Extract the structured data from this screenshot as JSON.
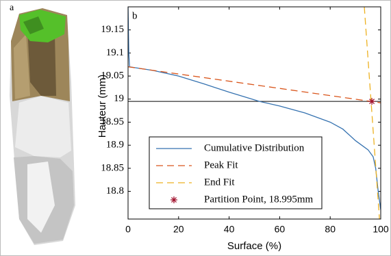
{
  "chart_data": {
    "type": "line",
    "panel_labels": [
      "a",
      "b"
    ],
    "xlabel": "Surface (%)",
    "ylabel": "Hauteur (mm)",
    "xlim": [
      0,
      100
    ],
    "xticks": [
      0,
      20,
      40,
      60,
      80,
      100
    ],
    "ylim": [
      18.74,
      19.2
    ],
    "yticks": [
      18.8,
      18.85,
      18.9,
      18.95,
      19,
      19.05,
      19.1,
      19.15
    ],
    "reference_line": 18.995,
    "legend": "lower right",
    "series": [
      {
        "name": "Cumulative Distribution",
        "color": "#3572b0",
        "style": "solid",
        "x": [
          0,
          0.3,
          0.6,
          10,
          20,
          30,
          40,
          52,
          60,
          70,
          80,
          85,
          90,
          95,
          97,
          98,
          99,
          100
        ],
        "values": [
          19.2,
          19.1,
          19.07,
          19.062,
          19.05,
          19.033,
          19.015,
          18.995,
          18.985,
          18.97,
          18.95,
          18.935,
          18.91,
          18.89,
          18.875,
          18.85,
          18.8,
          18.76
        ]
      },
      {
        "name": "Peak Fit",
        "color": "#d9541a",
        "style": "dashed",
        "x": [
          0,
          100
        ],
        "values": [
          19.07,
          18.992
        ]
      },
      {
        "name": "End Fit",
        "color": "#edb120",
        "style": "dashed",
        "x": [
          93.5,
          99.5
        ],
        "values": [
          19.2,
          18.74
        ]
      },
      {
        "name": "Partition Point, 18.995mm",
        "color": "#a2142f",
        "style": "marker",
        "x": [
          96.5
        ],
        "values": [
          18.995
        ]
      }
    ]
  }
}
